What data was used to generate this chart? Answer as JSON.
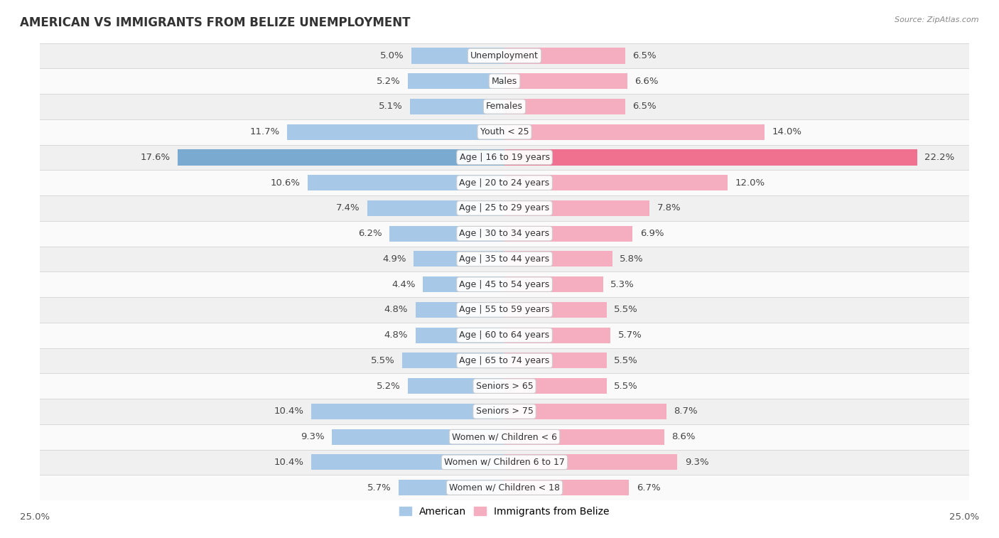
{
  "title": "AMERICAN VS IMMIGRANTS FROM BELIZE UNEMPLOYMENT",
  "source": "Source: ZipAtlas.com",
  "categories": [
    "Unemployment",
    "Males",
    "Females",
    "Youth < 25",
    "Age | 16 to 19 years",
    "Age | 20 to 24 years",
    "Age | 25 to 29 years",
    "Age | 30 to 34 years",
    "Age | 35 to 44 years",
    "Age | 45 to 54 years",
    "Age | 55 to 59 years",
    "Age | 60 to 64 years",
    "Age | 65 to 74 years",
    "Seniors > 65",
    "Seniors > 75",
    "Women w/ Children < 6",
    "Women w/ Children 6 to 17",
    "Women w/ Children < 18"
  ],
  "american": [
    5.0,
    5.2,
    5.1,
    11.7,
    17.6,
    10.6,
    7.4,
    6.2,
    4.9,
    4.4,
    4.8,
    4.8,
    5.5,
    5.2,
    10.4,
    9.3,
    10.4,
    5.7
  ],
  "belize": [
    6.5,
    6.6,
    6.5,
    14.0,
    22.2,
    12.0,
    7.8,
    6.9,
    5.8,
    5.3,
    5.5,
    5.7,
    5.5,
    5.5,
    8.7,
    8.6,
    9.3,
    6.7
  ],
  "american_color": "#a8c8e8",
  "belize_color": "#f4aec0",
  "highlight_american_color": "#7aaad0",
  "highlight_belize_color": "#f07090",
  "row_bg_even": "#f0f0f0",
  "row_bg_odd": "#fafafa",
  "row_border": "#d8d8d8",
  "x_max": 25.0,
  "label_fontsize": 9.5,
  "cat_fontsize": 9.0,
  "title_fontsize": 12,
  "bar_height": 0.62
}
